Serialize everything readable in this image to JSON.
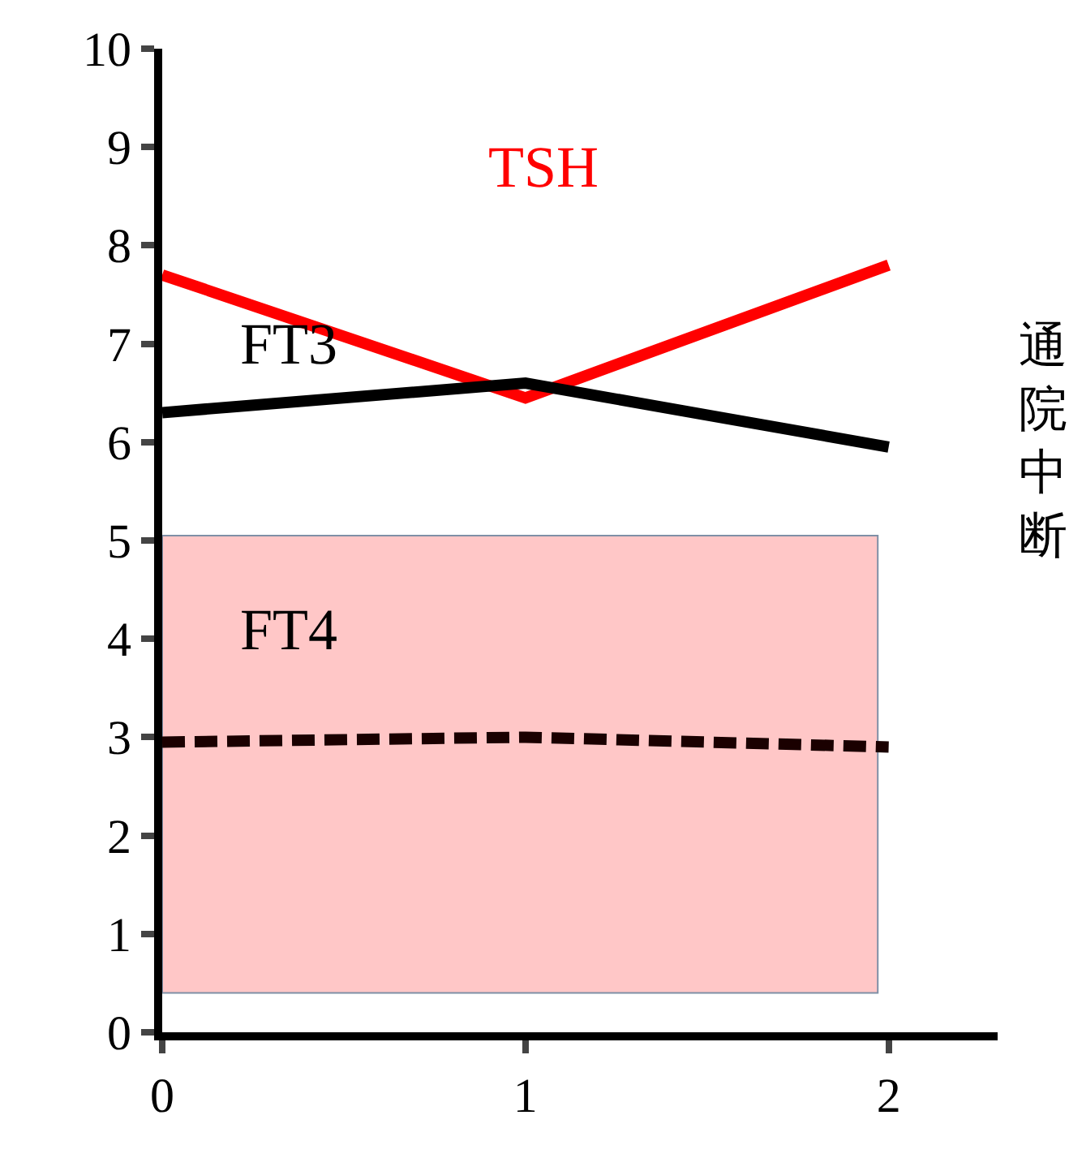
{
  "chart_data": {
    "type": "line",
    "x": [
      0,
      1,
      2
    ],
    "series": [
      {
        "name": "TSH",
        "color": "#ff0000",
        "values": [
          7.7,
          6.45,
          7.8
        ]
      },
      {
        "name": "FT3",
        "color": "#000000",
        "values": [
          6.3,
          6.6,
          5.95
        ]
      },
      {
        "name": "FT4",
        "color": "#1a0000",
        "values": [
          2.95,
          3.0,
          2.9
        ],
        "line_style": "dashed"
      }
    ],
    "xlim": [
      0,
      2.3
    ],
    "xticks": [
      0,
      1,
      2
    ],
    "ylim": [
      0,
      10
    ],
    "yticks": [
      0,
      1,
      2,
      3,
      4,
      5,
      6,
      7,
      8,
      9,
      10
    ],
    "bands": [
      {
        "axis": "y",
        "from": 0.4,
        "to": 5.05,
        "color": "#ffc7c7"
      }
    ],
    "annotations": [
      "通院中断"
    ],
    "grid": false,
    "legend": false,
    "marker": "none",
    "line_style": "solid"
  }
}
